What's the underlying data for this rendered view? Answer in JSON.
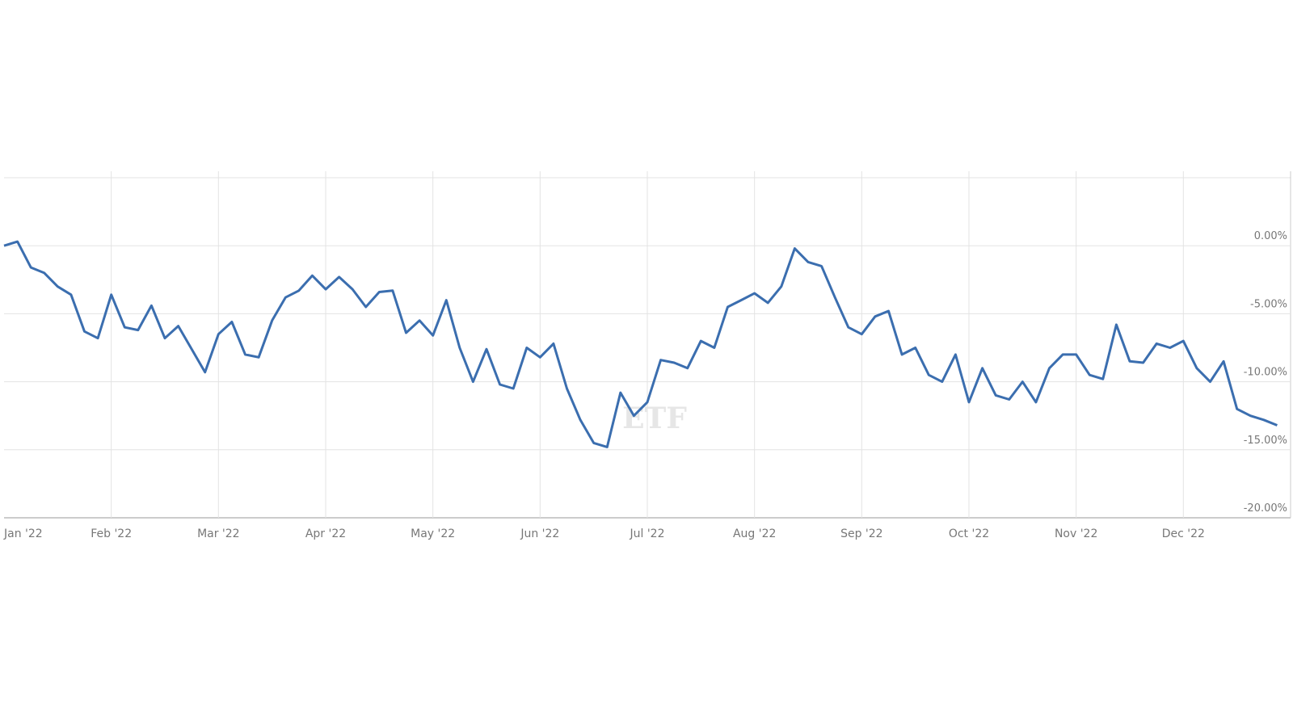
{
  "chart_data": {
    "type": "line",
    "watermark": "ETF",
    "categories": [
      "Jan '22",
      null,
      null,
      null,
      null,
      null,
      null,
      null,
      "Feb '22",
      null,
      null,
      null,
      null,
      null,
      null,
      null,
      "Mar '22",
      null,
      null,
      null,
      null,
      null,
      null,
      null,
      "Apr '22",
      null,
      null,
      null,
      null,
      null,
      null,
      null,
      "May '22",
      null,
      null,
      null,
      null,
      null,
      null,
      null,
      "Jun '22",
      null,
      null,
      null,
      null,
      null,
      null,
      null,
      "Jul '22",
      null,
      null,
      null,
      null,
      null,
      null,
      null,
      "Aug '22",
      null,
      null,
      null,
      null,
      null,
      null,
      null,
      "Sep '22",
      null,
      null,
      null,
      null,
      null,
      null,
      null,
      "Oct '22",
      null,
      null,
      null,
      null,
      null,
      null,
      null,
      "Nov '22",
      null,
      null,
      null,
      null,
      null,
      null,
      null,
      "Dec '22",
      null,
      null,
      null,
      null,
      null,
      null,
      null
    ],
    "values": [
      0,
      0.3,
      -1.6,
      -2.0,
      -3.0,
      -3.6,
      -6.3,
      -6.8,
      -3.6,
      -6.0,
      -6.2,
      -4.4,
      -6.8,
      -5.9,
      -7.6,
      -9.3,
      -6.5,
      -5.6,
      -8.0,
      -8.2,
      -5.5,
      -3.8,
      -3.3,
      -2.2,
      -3.2,
      -2.3,
      -3.2,
      -4.5,
      -3.4,
      -3.3,
      -6.4,
      -5.5,
      -6.6,
      -4.0,
      -7.5,
      -10.0,
      -7.6,
      -10.2,
      -10.5,
      -7.5,
      -8.2,
      -7.2,
      -10.5,
      -12.8,
      -14.5,
      -14.8,
      -10.8,
      -12.5,
      -11.5,
      -8.4,
      -8.6,
      -9.0,
      -7.0,
      -7.5,
      -4.5,
      -4.0,
      -3.5,
      -4.2,
      -3.0,
      -0.2,
      -1.2,
      -1.5,
      -3.8,
      -6.0,
      -6.5,
      -5.2,
      -4.8,
      -8.0,
      -7.5,
      -9.5,
      -10.0,
      -8.0,
      -11.5,
      -9.0,
      -11.0,
      -11.3,
      -10.0,
      -11.5,
      -9.0,
      -8.0,
      -8.0,
      -9.5,
      -9.8,
      -5.8,
      -8.5,
      -8.6,
      -7.2,
      -7.5,
      -7.0,
      -9.0,
      -10.0,
      -8.5,
      -12.0,
      -12.5,
      -12.8,
      -13.2
    ],
    "color": "#3b6eaf",
    "ylim": [
      -20,
      5
    ],
    "yticks": [
      {
        "value": 0,
        "label": "0.00%"
      },
      {
        "value": -5,
        "label": "-5.00%"
      },
      {
        "value": -10,
        "label": "-10.00%"
      },
      {
        "value": -15,
        "label": "-15.00%"
      },
      {
        "value": -20,
        "label": "-20.00%"
      }
    ],
    "grid": true
  }
}
